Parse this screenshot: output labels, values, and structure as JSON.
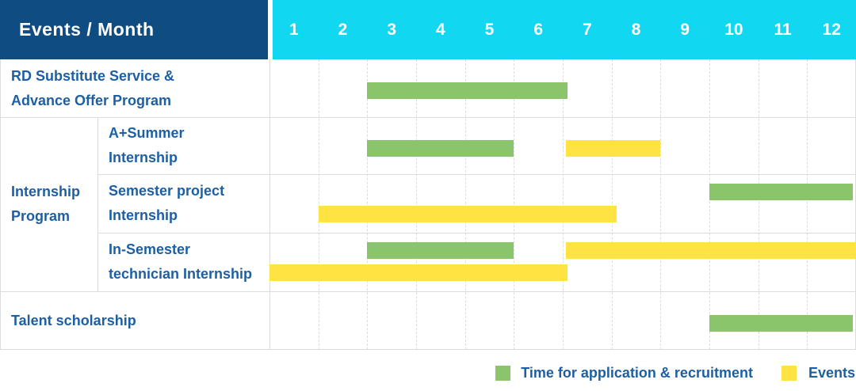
{
  "header": {
    "title": "Events / Month"
  },
  "colors": {
    "navy": "#0f4c81",
    "cyan": "#12d7f0",
    "green": "#8ac56c",
    "yellow": "#ffe342",
    "label_text": "#1d5fa4",
    "border": "#dcdcdc"
  },
  "chart_data": {
    "type": "gantt",
    "x_unit": "month",
    "x_domain": [
      1,
      13
    ],
    "columns": [
      "1",
      "2",
      "3",
      "4",
      "5",
      "6",
      "7",
      "8",
      "9",
      "10",
      "11",
      "12"
    ],
    "groups": [
      {
        "label": "Internship\nProgram",
        "row_ids": [
          "a-summer-internship",
          "semester-project-internship",
          "in-semester-technician-internship"
        ]
      }
    ],
    "rows": [
      {
        "id": "rd-substitute",
        "label": "RD Substitute Service &\nAdvance Offer Program",
        "bars": [
          {
            "type": "application-recruitment",
            "color": "green",
            "start": 3,
            "end": 7.1,
            "lane": 1
          }
        ]
      },
      {
        "id": "a-summer-internship",
        "label": "A+Summer\nInternship",
        "bars": [
          {
            "type": "application-recruitment",
            "color": "green",
            "start": 3,
            "end": 6,
            "lane": 1
          },
          {
            "type": "event",
            "color": "yellow",
            "start": 7.07,
            "end": 9,
            "lane": 1
          }
        ]
      },
      {
        "id": "semester-project-internship",
        "label": "Semester project\nInternship",
        "bars": [
          {
            "type": "application-recruitment",
            "color": "green",
            "start": 10,
            "end": 12.93,
            "lane": 1
          },
          {
            "type": "event",
            "color": "yellow",
            "start": 2,
            "end": 8.1,
            "lane": 2
          }
        ]
      },
      {
        "id": "in-semester-technician-internship",
        "label": "In-Semester\ntechnician Internship",
        "bars": [
          {
            "type": "application-recruitment",
            "color": "green",
            "start": 3,
            "end": 6,
            "lane": 1
          },
          {
            "type": "event",
            "color": "yellow",
            "start": 7.07,
            "end": 13,
            "lane": 1
          },
          {
            "type": "event",
            "color": "yellow",
            "start": 1,
            "end": 7.1,
            "lane": 2
          }
        ]
      },
      {
        "id": "talent-scholarship",
        "label": "Talent scholarship",
        "bars": [
          {
            "type": "application-recruitment",
            "color": "green",
            "start": 10,
            "end": 12.93,
            "lane": 1
          }
        ]
      }
    ],
    "legend": [
      {
        "color": "green",
        "label": "Time for application & recruitment"
      },
      {
        "color": "yellow",
        "label": "Events"
      }
    ]
  }
}
